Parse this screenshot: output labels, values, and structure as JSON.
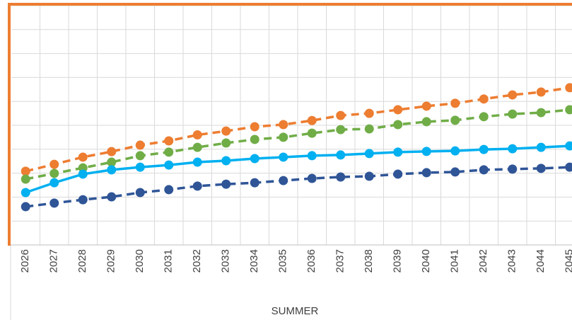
{
  "chart_data": {
    "type": "line",
    "x_label": "SUMMER",
    "categories": [
      "2026",
      "2027",
      "2028",
      "2029",
      "2030",
      "2031",
      "2032",
      "2033",
      "2034",
      "2035",
      "2036",
      "2037",
      "2038",
      "2039",
      "2040",
      "2041",
      "2042",
      "2043",
      "2044",
      "2045"
    ],
    "ylim": [
      0,
      10
    ],
    "grid": true,
    "series": [
      {
        "color": "#ed7d31",
        "dashed": true,
        "values": [
          3.08,
          3.37,
          3.67,
          3.9,
          4.17,
          4.35,
          4.6,
          4.76,
          4.94,
          5.03,
          5.2,
          5.41,
          5.5,
          5.65,
          5.8,
          5.92,
          6.1,
          6.27,
          6.39,
          6.57
        ]
      },
      {
        "color": "#70ad47",
        "dashed": true,
        "values": [
          2.75,
          2.99,
          3.22,
          3.46,
          3.73,
          3.88,
          4.08,
          4.26,
          4.41,
          4.5,
          4.67,
          4.82,
          4.85,
          5.03,
          5.15,
          5.21,
          5.36,
          5.47,
          5.53,
          5.65
        ]
      },
      {
        "color": "#00b0f0",
        "dashed": false,
        "values": [
          2.19,
          2.6,
          2.96,
          3.14,
          3.25,
          3.34,
          3.46,
          3.52,
          3.61,
          3.67,
          3.73,
          3.76,
          3.82,
          3.88,
          3.91,
          3.93,
          3.99,
          4.02,
          4.08,
          4.14
        ]
      },
      {
        "color": "#2f5597",
        "dashed": true,
        "values": [
          1.6,
          1.75,
          1.89,
          2.01,
          2.19,
          2.31,
          2.46,
          2.54,
          2.6,
          2.69,
          2.78,
          2.84,
          2.87,
          2.96,
          3.02,
          3.05,
          3.14,
          3.17,
          3.2,
          3.25
        ]
      }
    ]
  }
}
